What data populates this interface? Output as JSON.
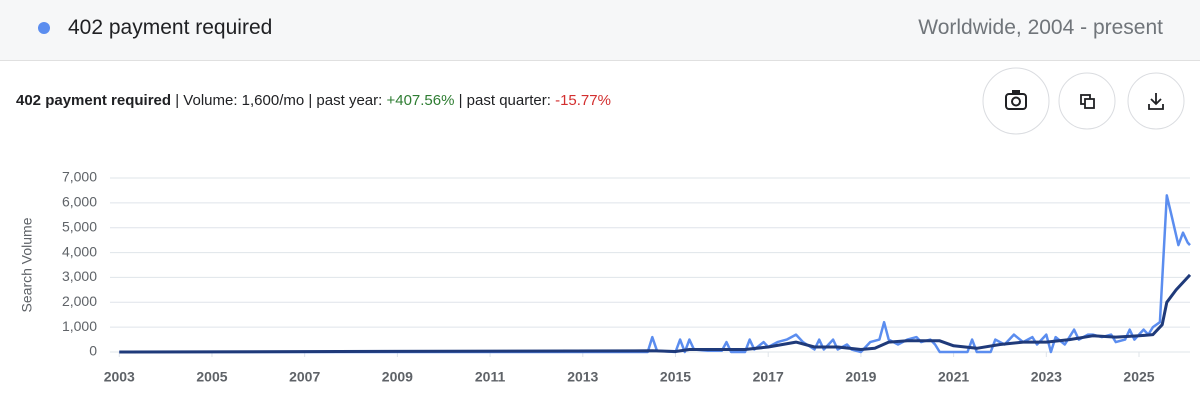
{
  "header": {
    "keyword": "402 payment required",
    "region": "Worldwide, 2004 - present"
  },
  "stats": [
    "402 payment required",
    " | Volume: 1,600/mo | past year: ",
    "+407.56%",
    " | past quarter: ",
    "-15.77%"
  ],
  "chart_data": {
    "type": "line",
    "ylabel": "Search Volume",
    "xlim": [
      2002.8,
      2026.1
    ],
    "xticks": [
      2003,
      2005,
      2007,
      2009,
      2011,
      2013,
      2015,
      2017,
      2019,
      2021,
      2023,
      2025
    ],
    "ylim": [
      0,
      7000
    ],
    "yticks": [
      0,
      {
        "value": 1000,
        "label": "1,000"
      },
      {
        "value": 2000,
        "label": "2,000"
      },
      {
        "value": 3000,
        "label": "3,000"
      },
      {
        "value": 4000,
        "label": "4,000"
      },
      {
        "value": 5000,
        "label": "5,000"
      },
      {
        "value": 6000,
        "label": "6,000"
      },
      {
        "value": 7000,
        "label": "7,000"
      }
    ],
    "grid": true,
    "series": [
      {
        "color": "#5b8def",
        "x": [
          2003,
          2014.4,
          2014.5,
          2014.6,
          2015.0,
          2015.1,
          2015.2,
          2015.3,
          2015.4,
          2015.7,
          2016.0,
          2016.1,
          2016.2,
          2016.5,
          2016.6,
          2016.7,
          2016.9,
          2017.0,
          2017.2,
          2017.4,
          2017.5,
          2017.6,
          2017.75,
          2018.0,
          2018.1,
          2018.2,
          2018.4,
          2018.5,
          2018.7,
          2018.8,
          2019.0,
          2019.2,
          2019.4,
          2019.5,
          2019.6,
          2019.8,
          2020.0,
          2020.2,
          2020.3,
          2020.5,
          2020.6,
          2020.7,
          2021.0,
          2021.3,
          2021.4,
          2021.5,
          2021.8,
          2021.9,
          2022.1,
          2022.3,
          2022.5,
          2022.7,
          2022.8,
          2023.0,
          2023.1,
          2023.2,
          2023.4,
          2023.6,
          2023.7,
          2023.9,
          2024.0,
          2024.2,
          2024.4,
          2024.5,
          2024.7,
          2024.8,
          2024.9,
          2025.1,
          2025.2,
          2025.3,
          2025.45,
          2025.6,
          2025.7,
          2025.85,
          2025.95,
          2026.05,
          2026.1
        ],
        "values": [
          0,
          0,
          600,
          50,
          0,
          500,
          0,
          500,
          100,
          50,
          50,
          400,
          0,
          0,
          500,
          100,
          400,
          200,
          400,
          500,
          600,
          700,
          400,
          100,
          500,
          100,
          500,
          100,
          300,
          100,
          0,
          400,
          500,
          1200,
          500,
          300,
          500,
          600,
          400,
          500,
          300,
          0,
          0,
          0,
          500,
          0,
          0,
          500,
          300,
          700,
          400,
          600,
          300,
          700,
          0,
          600,
          300,
          900,
          500,
          700,
          700,
          600,
          700,
          400,
          500,
          900,
          500,
          900,
          700,
          1000,
          1200,
          6300,
          5500,
          4300,
          4800,
          4400,
          4300
        ]
      },
      {
        "color": "#1f3a7a",
        "x": [
          2003,
          2014.5,
          2015,
          2015.3,
          2016,
          2016.5,
          2017,
          2017.6,
          2018,
          2018.5,
          2019,
          2019.3,
          2019.6,
          2020,
          2020.7,
          2021,
          2021.5,
          2022,
          2022.5,
          2023,
          2023.5,
          2024,
          2024.5,
          2025,
          2025.3,
          2025.5,
          2025.6,
          2025.8,
          2026.1
        ],
        "values": [
          0,
          50,
          20,
          100,
          100,
          100,
          200,
          400,
          200,
          200,
          100,
          150,
          400,
          450,
          450,
          250,
          150,
          300,
          400,
          400,
          500,
          650,
          600,
          650,
          700,
          1100,
          2000,
          2500,
          3100
        ]
      }
    ]
  }
}
